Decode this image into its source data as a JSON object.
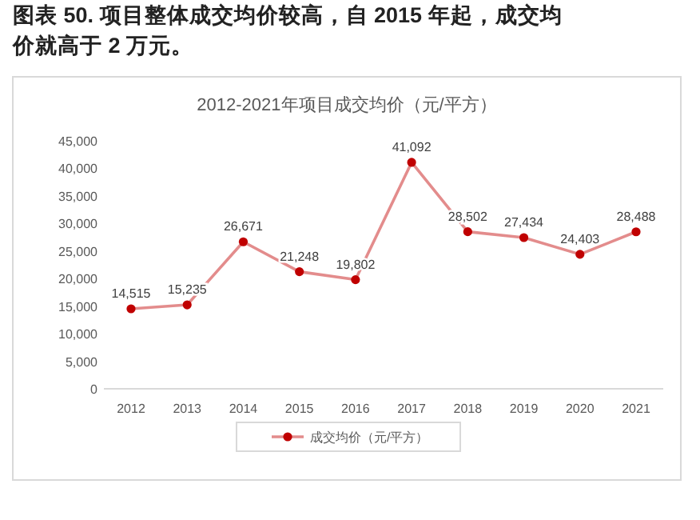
{
  "chart_data": {
    "type": "line",
    "title": "2012-2021年项目成交均价（元/平方）",
    "annotations": [
      "图表 50. 项目整体成交均价较高，自 2015 年起，成交均价就高于 2 万元。"
    ],
    "categories": [
      "2012",
      "2013",
      "2014",
      "2015",
      "2016",
      "2017",
      "2018",
      "2019",
      "2020",
      "2021"
    ],
    "series": [
      {
        "name": "成交均价（元/平方）",
        "color": "#c00000",
        "values": [
          14515,
          15235,
          26671,
          21248,
          19802,
          41092,
          28502,
          27434,
          24403,
          28488
        ],
        "value_labels": [
          "14,515",
          "15,235",
          "26,671",
          "21,248",
          "19,802",
          "41,092",
          "28,502",
          "27,434",
          "24,403",
          "28,488"
        ]
      }
    ],
    "ylim": [
      0,
      45000
    ],
    "yticks": [
      {
        "value": 0,
        "label": "0"
      },
      {
        "value": 5000,
        "label": "5,000"
      },
      {
        "value": 10000,
        "label": "10,000"
      },
      {
        "value": 15000,
        "label": "15,000"
      },
      {
        "value": 20000,
        "label": "20,000"
      },
      {
        "value": 25000,
        "label": "25,000"
      },
      {
        "value": 30000,
        "label": "30,000"
      },
      {
        "value": 35000,
        "label": "35,000"
      },
      {
        "value": 40000,
        "label": "40,000"
      },
      {
        "value": 45000,
        "label": "45,000"
      }
    ],
    "grid": false,
    "legend": "bottom",
    "marker": "circle",
    "line_style": "solid"
  }
}
